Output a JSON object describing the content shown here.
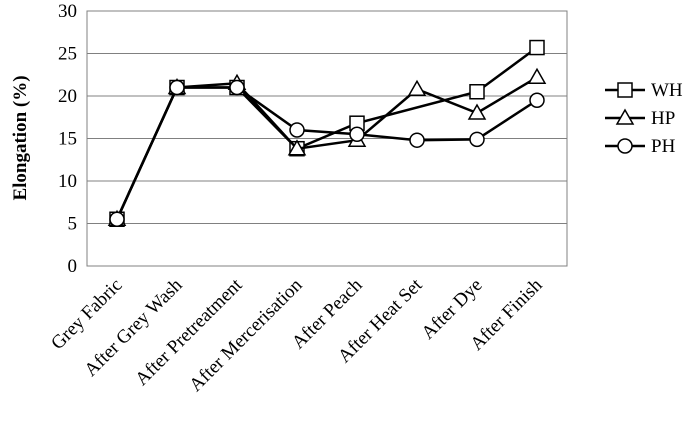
{
  "chart_data": {
    "type": "line",
    "categories": [
      "Grey Fabric",
      "After Grey Wash",
      "After Pretreatment",
      "After Mercerisation",
      "After Peach",
      "After Heat Set",
      "After Dye",
      "After Finish"
    ],
    "ylabel": "Elongation (%)",
    "xlabel": "",
    "ylim": [
      0,
      30
    ],
    "yticks": [
      0,
      5,
      10,
      15,
      20,
      25,
      30
    ],
    "grid": "horizontal",
    "legend_position": "right",
    "series": [
      {
        "name": "WH",
        "marker": "square",
        "values": [
          5.5,
          21.0,
          21.0,
          13.8,
          16.8,
          null,
          20.5,
          25.7
        ]
      },
      {
        "name": "HP",
        "marker": "triangle",
        "values": [
          5.5,
          21.0,
          21.5,
          13.8,
          14.8,
          20.8,
          18.0,
          22.2
        ]
      },
      {
        "name": "PH",
        "marker": "circle",
        "values": [
          5.5,
          21.0,
          21.0,
          16.0,
          15.5,
          14.8,
          14.9,
          19.5
        ]
      }
    ]
  }
}
